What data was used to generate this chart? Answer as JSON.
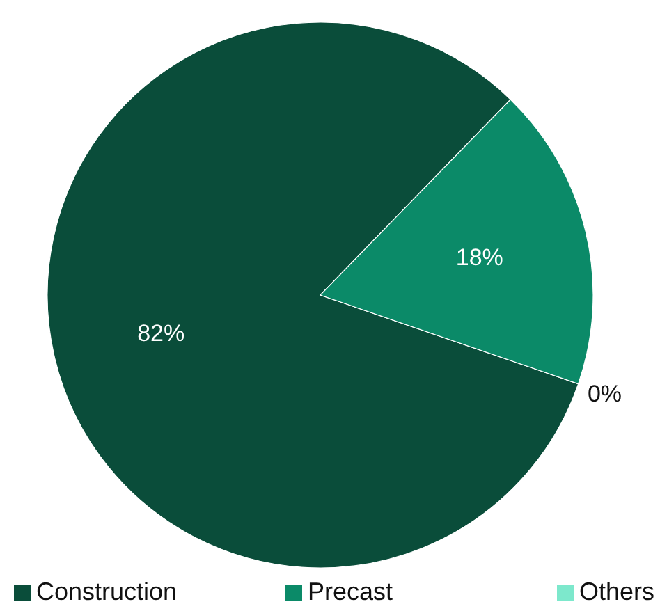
{
  "chart_data": {
    "type": "pie",
    "categories": [
      "Construction",
      "Precast",
      "Others"
    ],
    "values": [
      82,
      18,
      0
    ],
    "colors": [
      "#0a4d3a",
      "#0b8a68",
      "#7de8cc"
    ],
    "value_labels": [
      "82%",
      "18%",
      "0%"
    ],
    "legend": "bottom"
  }
}
